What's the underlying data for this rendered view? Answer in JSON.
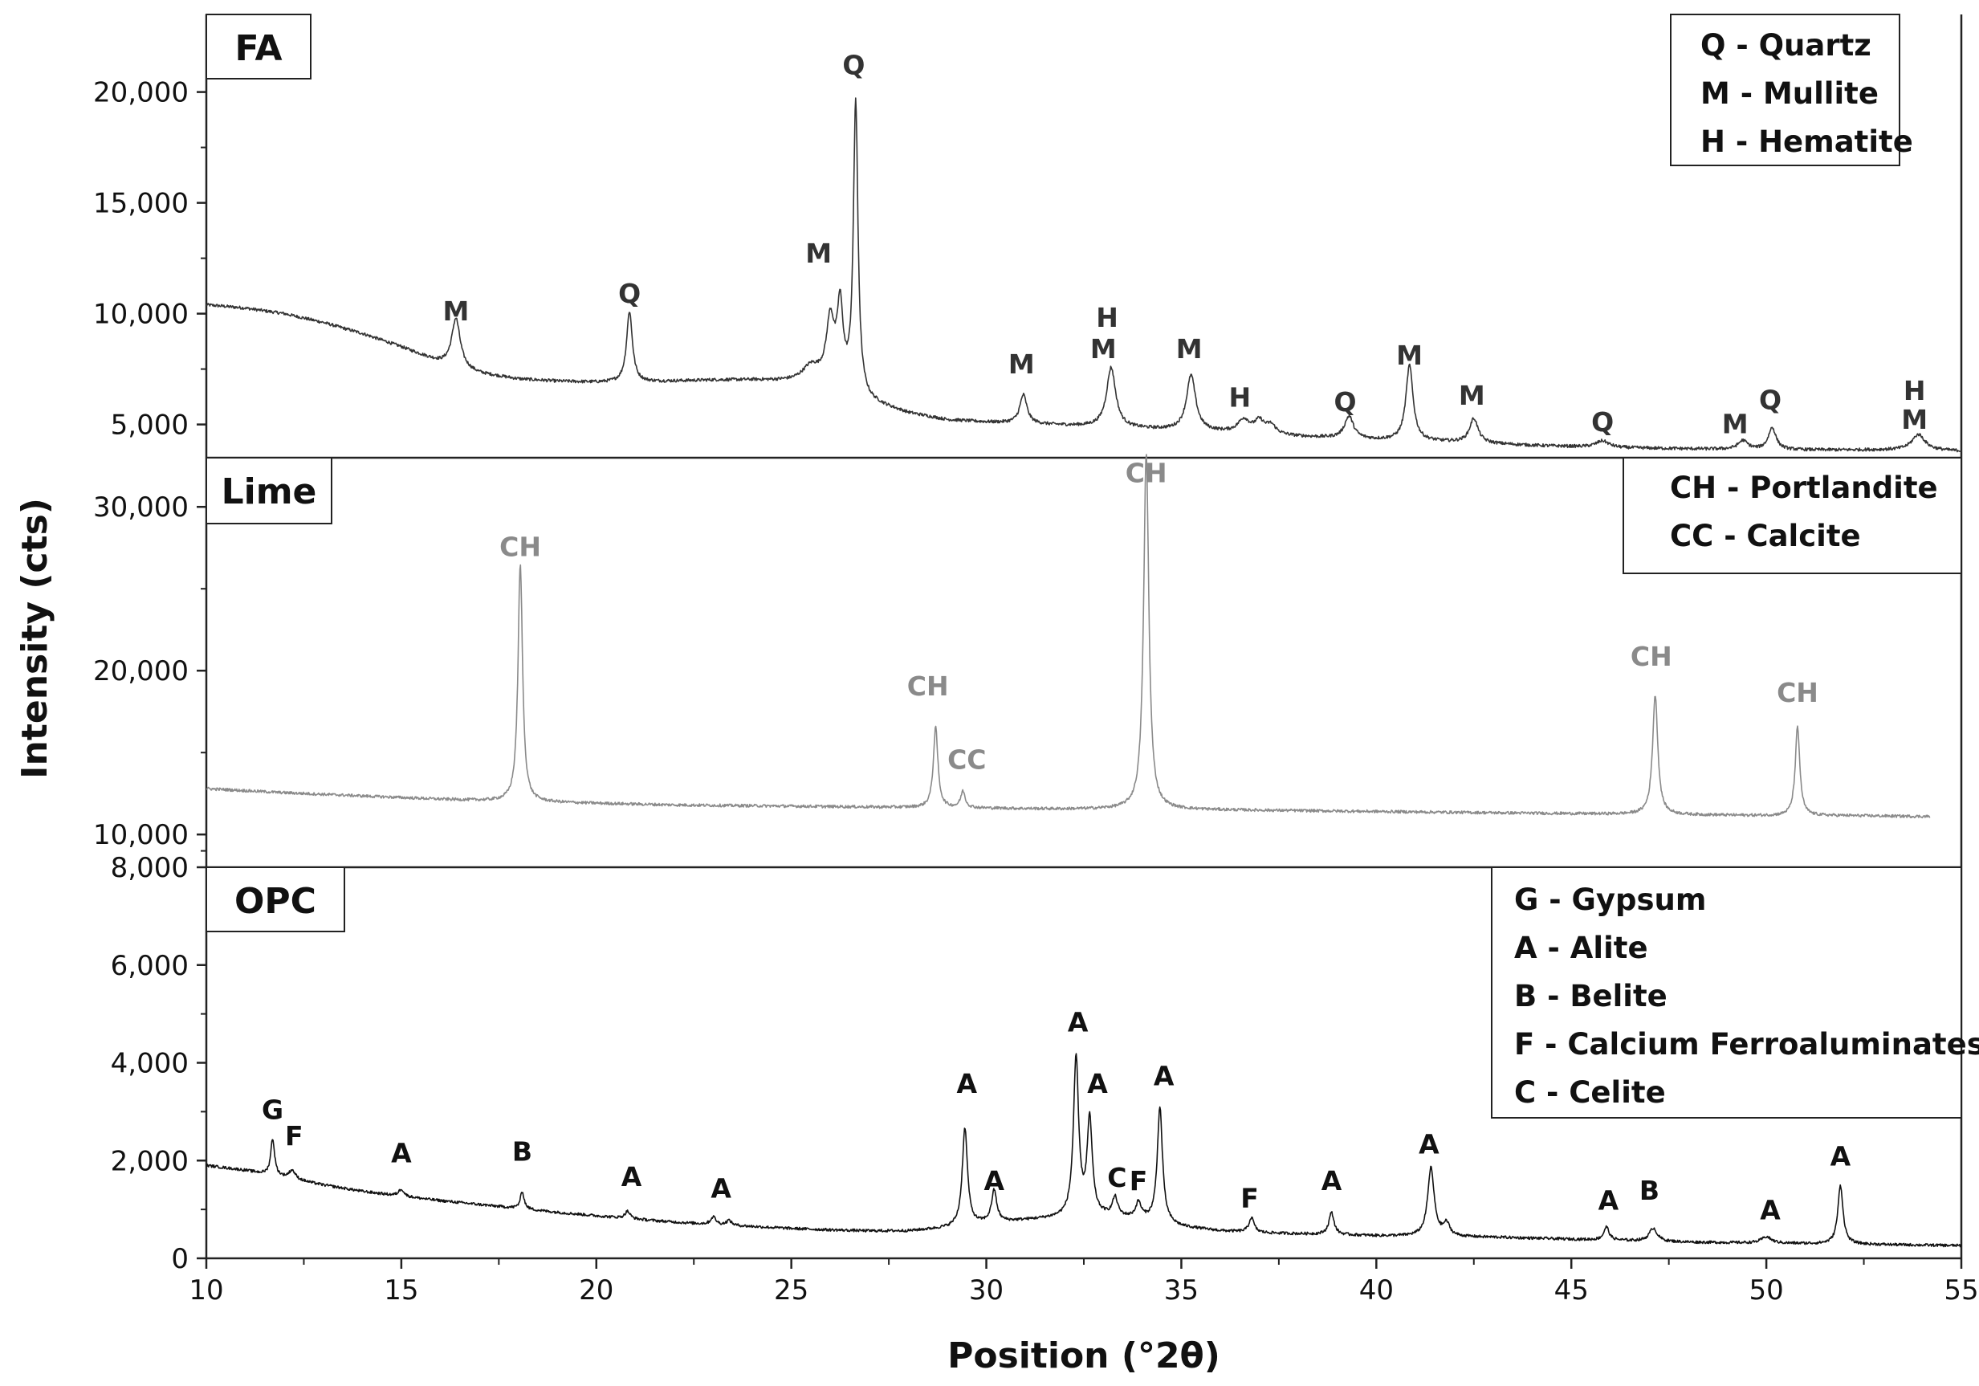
{
  "chart_data": {
    "type": "line",
    "xlabel": "Position (°2θ)",
    "ylabel": "Intensity (cts)",
    "xlim": [
      10,
      55
    ],
    "xticks": [
      10,
      15,
      20,
      25,
      30,
      35,
      40,
      45,
      50,
      55
    ],
    "panels": [
      {
        "id": "fa",
        "name": "FA",
        "color": "#333333",
        "label_color": "#333333",
        "ylim": [
          3500,
          23500
        ],
        "yticks": [
          5000,
          10000,
          15000,
          20000
        ],
        "ytick_labels": [
          "5,000",
          "10,000",
          "15,000",
          "20,000"
        ],
        "legend": [
          "Q - Quartz",
          "M - Mullite",
          "H - Hematite"
        ],
        "baseline": [
          [
            10,
            10400
          ],
          [
            11,
            10250
          ],
          [
            12,
            10000
          ],
          [
            13,
            9600
          ],
          [
            14,
            9100
          ],
          [
            15,
            8500
          ],
          [
            16,
            7800
          ],
          [
            17,
            7300
          ],
          [
            18,
            7050
          ],
          [
            19,
            6950
          ],
          [
            20,
            6900
          ],
          [
            21,
            6900
          ],
          [
            22,
            6950
          ],
          [
            23,
            7000
          ],
          [
            24,
            7000
          ],
          [
            25,
            6950
          ],
          [
            26,
            7000
          ],
          [
            27,
            6000
          ],
          [
            28,
            5500
          ],
          [
            29,
            5200
          ],
          [
            30,
            5100
          ],
          [
            32,
            4950
          ],
          [
            34,
            4800
          ],
          [
            36,
            4650
          ],
          [
            38,
            4450
          ],
          [
            40,
            4300
          ],
          [
            42,
            4200
          ],
          [
            44,
            4050
          ],
          [
            46,
            3950
          ],
          [
            48,
            3900
          ],
          [
            50,
            3850
          ],
          [
            52,
            3850
          ],
          [
            54,
            3850
          ],
          [
            55,
            3800
          ]
        ],
        "peaks": [
          [
            16.4,
            2200,
            0.13
          ],
          [
            20.85,
            3200,
            0.09
          ],
          [
            25.5,
            600,
            0.25
          ],
          [
            26.0,
            2600,
            0.12
          ],
          [
            26.25,
            3400,
            0.09
          ],
          [
            26.65,
            13100,
            0.07
          ],
          [
            30.95,
            1300,
            0.11
          ],
          [
            33.2,
            2700,
            0.14
          ],
          [
            35.25,
            2500,
            0.14
          ],
          [
            36.6,
            600,
            0.18
          ],
          [
            37.0,
            550,
            0.15
          ],
          [
            37.3,
            400,
            0.15
          ],
          [
            39.3,
            1000,
            0.14
          ],
          [
            40.85,
            3400,
            0.11
          ],
          [
            42.5,
            1100,
            0.13
          ],
          [
            45.8,
            300,
            0.2
          ],
          [
            49.4,
            400,
            0.15
          ],
          [
            50.15,
            1000,
            0.12
          ],
          [
            53.9,
            700,
            0.2
          ]
        ],
        "labels": [
          {
            "text": "M",
            "x": 16.4,
            "y": 9700
          },
          {
            "text": "Q",
            "x": 20.85,
            "y": 10500
          },
          {
            "text": "M",
            "x": 25.7,
            "y": 12300
          },
          {
            "text": "Q",
            "x": 26.6,
            "y": 20800
          },
          {
            "text": "M",
            "x": 30.9,
            "y": 7300
          },
          {
            "text": "H",
            "x": 33.1,
            "y": 9400
          },
          {
            "text": "M",
            "x": 33.0,
            "y": 8000
          },
          {
            "text": "M",
            "x": 35.2,
            "y": 8000
          },
          {
            "text": "H",
            "x": 36.5,
            "y": 5800
          },
          {
            "text": "Q",
            "x": 39.2,
            "y": 5600
          },
          {
            "text": "M",
            "x": 40.85,
            "y": 7700
          },
          {
            "text": "M",
            "x": 42.45,
            "y": 5900
          },
          {
            "text": "Q",
            "x": 45.8,
            "y": 4700
          },
          {
            "text": "M",
            "x": 49.2,
            "y": 4600
          },
          {
            "text": "Q",
            "x": 50.1,
            "y": 5700
          },
          {
            "text": "H",
            "x": 53.8,
            "y": 6100
          },
          {
            "text": "M",
            "x": 53.8,
            "y": 4800
          }
        ]
      },
      {
        "id": "lime",
        "name": "Lime",
        "color": "#8a8a8a",
        "label_color": "#8a8a8a",
        "ylim": [
          8000,
          33000
        ],
        "yticks": [
          8000,
          10000,
          20000,
          30000
        ],
        "ytick_labels": [
          "8,000",
          "10,000",
          "20,000",
          "30,000"
        ],
        "legend": [
          "CH - Portlandite",
          "CC - Calcite"
        ],
        "baseline": [
          [
            10,
            12800
          ],
          [
            12,
            12550
          ],
          [
            14,
            12350
          ],
          [
            16,
            12150
          ],
          [
            18,
            12000
          ],
          [
            20,
            11900
          ],
          [
            22,
            11800
          ],
          [
            24,
            11750
          ],
          [
            26,
            11700
          ],
          [
            28,
            11650
          ],
          [
            30,
            11600
          ],
          [
            32,
            11550
          ],
          [
            34,
            11550
          ],
          [
            36,
            11500
          ],
          [
            38,
            11450
          ],
          [
            40,
            11400
          ],
          [
            42,
            11350
          ],
          [
            44,
            11300
          ],
          [
            46,
            11250
          ],
          [
            48,
            11200
          ],
          [
            50,
            11150
          ],
          [
            52,
            11150
          ],
          [
            54,
            11100
          ],
          [
            54.2,
            11100
          ]
        ],
        "peaks": [
          [
            18.05,
            14500,
            0.07
          ],
          [
            28.7,
            4900,
            0.07
          ],
          [
            29.4,
            1000,
            0.07
          ],
          [
            34.1,
            21700,
            0.08
          ],
          [
            47.15,
            7300,
            0.08
          ],
          [
            50.8,
            5400,
            0.07
          ]
        ],
        "labels": [
          {
            "text": "CH",
            "x": 18.05,
            "y": 27000
          },
          {
            "text": "CH",
            "x": 28.5,
            "y": 18500
          },
          {
            "text": "CC",
            "x": 29.5,
            "y": 14000
          },
          {
            "text": "CH",
            "x": 34.1,
            "y": 31500
          },
          {
            "text": "CH",
            "x": 47.05,
            "y": 20300
          },
          {
            "text": "CH",
            "x": 50.8,
            "y": 18100
          }
        ]
      },
      {
        "id": "opc",
        "name": "OPC",
        "color": "#111111",
        "label_color": "#111111",
        "ylim": [
          0,
          8000
        ],
        "yticks": [
          0,
          2000,
          4000,
          6000
        ],
        "ytick_labels": [
          "0",
          "2,000",
          "4,000",
          "6,000"
        ],
        "legend": [
          "G - Gypsum",
          "A - Alite",
          "B - Belite",
          "F - Calcium Ferroaluminates",
          "C - Celite"
        ],
        "baseline": [
          [
            10,
            1900
          ],
          [
            11,
            1800
          ],
          [
            12,
            1650
          ],
          [
            13,
            1500
          ],
          [
            14,
            1370
          ],
          [
            15,
            1270
          ],
          [
            16,
            1180
          ],
          [
            17,
            1100
          ],
          [
            18,
            1020
          ],
          [
            19,
            940
          ],
          [
            20,
            870
          ],
          [
            21,
            800
          ],
          [
            22,
            740
          ],
          [
            23,
            690
          ],
          [
            24,
            650
          ],
          [
            25,
            610
          ],
          [
            26,
            580
          ],
          [
            27,
            560
          ],
          [
            28,
            560
          ],
          [
            29,
            620
          ],
          [
            30,
            720
          ],
          [
            31,
            780
          ],
          [
            32,
            830
          ],
          [
            33,
            860
          ],
          [
            34,
            800
          ],
          [
            35,
            640
          ],
          [
            36,
            560
          ],
          [
            37,
            520
          ],
          [
            38,
            500
          ],
          [
            39,
            480
          ],
          [
            40,
            460
          ],
          [
            41,
            450
          ],
          [
            42,
            440
          ],
          [
            43,
            430
          ],
          [
            44,
            410
          ],
          [
            45,
            390
          ],
          [
            46,
            370
          ],
          [
            47,
            350
          ],
          [
            48,
            330
          ],
          [
            49,
            320
          ],
          [
            50,
            310
          ],
          [
            51,
            300
          ],
          [
            52,
            290
          ],
          [
            53,
            280
          ],
          [
            54,
            270
          ],
          [
            55,
            260
          ]
        ],
        "peaks": [
          [
            11.7,
            750,
            0.06
          ],
          [
            12.2,
            180,
            0.1
          ],
          [
            15.0,
            150,
            0.08
          ],
          [
            18.1,
            350,
            0.06
          ],
          [
            20.8,
            150,
            0.08
          ],
          [
            23.0,
            160,
            0.08
          ],
          [
            23.4,
            100,
            0.08
          ],
          [
            29.45,
            2000,
            0.08
          ],
          [
            30.2,
            650,
            0.08
          ],
          [
            32.3,
            3230,
            0.08
          ],
          [
            32.65,
            1950,
            0.08
          ],
          [
            33.3,
            380,
            0.08
          ],
          [
            33.9,
            310,
            0.08
          ],
          [
            34.45,
            2350,
            0.08
          ],
          [
            36.8,
            300,
            0.08
          ],
          [
            38.85,
            450,
            0.08
          ],
          [
            41.4,
            1400,
            0.1
          ],
          [
            41.8,
            250,
            0.1
          ],
          [
            45.9,
            270,
            0.08
          ],
          [
            47.1,
            270,
            0.12
          ],
          [
            50.0,
            130,
            0.15
          ],
          [
            51.9,
            1200,
            0.08
          ]
        ],
        "labels": [
          {
            "text": "G",
            "x": 11.7,
            "y": 2850
          },
          {
            "text": "F",
            "x": 12.25,
            "y": 2320
          },
          {
            "text": "A",
            "x": 15.0,
            "y": 1960
          },
          {
            "text": "B",
            "x": 18.1,
            "y": 2000
          },
          {
            "text": "A",
            "x": 20.9,
            "y": 1480
          },
          {
            "text": "A",
            "x": 23.2,
            "y": 1240
          },
          {
            "text": "A",
            "x": 29.5,
            "y": 3380
          },
          {
            "text": "A",
            "x": 30.2,
            "y": 1400
          },
          {
            "text": "A",
            "x": 32.35,
            "y": 4640
          },
          {
            "text": "A",
            "x": 32.85,
            "y": 3380
          },
          {
            "text": "C",
            "x": 33.35,
            "y": 1460
          },
          {
            "text": "F",
            "x": 33.9,
            "y": 1400
          },
          {
            "text": "A",
            "x": 34.55,
            "y": 3540
          },
          {
            "text": "F",
            "x": 36.75,
            "y": 1040
          },
          {
            "text": "A",
            "x": 38.85,
            "y": 1400
          },
          {
            "text": "A",
            "x": 41.35,
            "y": 2140
          },
          {
            "text": "A",
            "x": 45.95,
            "y": 990
          },
          {
            "text": "B",
            "x": 47.0,
            "y": 1200
          },
          {
            "text": "A",
            "x": 50.1,
            "y": 800
          },
          {
            "text": "A",
            "x": 51.9,
            "y": 1900
          }
        ]
      }
    ]
  }
}
